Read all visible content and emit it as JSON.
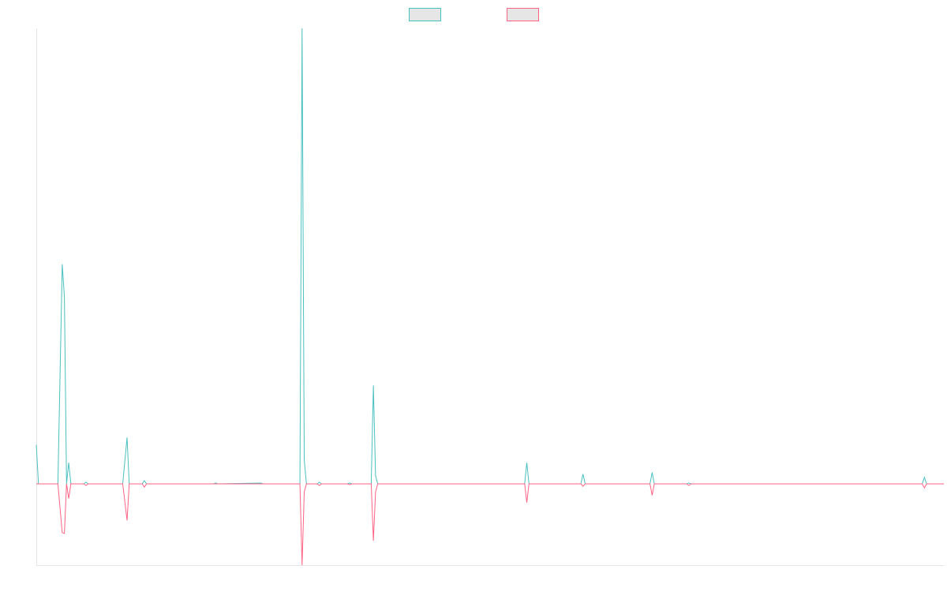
{
  "chart_data": {
    "type": "line",
    "title": "",
    "xlabel": "",
    "ylabel": "",
    "grid": false,
    "legend_position": "top-center",
    "x_range": [
      0,
      210
    ],
    "ylim": [
      -100,
      560
    ],
    "x": [
      0,
      0.5,
      1,
      5,
      6,
      6.5,
      7,
      7.5,
      8,
      8.5,
      9,
      11,
      11.5,
      12,
      19.5,
      20,
      21,
      21.5,
      22,
      24.5,
      25,
      25.5,
      41,
      41.5,
      42,
      52,
      52.5,
      53,
      61,
      61.5,
      62,
      62.5,
      63,
      65,
      65.5,
      66,
      72,
      72.5,
      73,
      77.5,
      78,
      78.5,
      79,
      79.5,
      113,
      113.5,
      114,
      117,
      122,
      126,
      126.5,
      127,
      142,
      142.5,
      143,
      150.5,
      151,
      151.5,
      205,
      205.5,
      206,
      210
    ],
    "series": [
      {
        "name": "",
        "color": "#4bc0c0",
        "values": [
          48,
          0,
          0,
          0,
          270,
          230,
          0,
          26,
          0,
          0,
          0,
          0,
          2,
          0,
          0,
          0,
          57,
          0,
          0,
          0,
          4,
          0,
          0,
          1,
          0,
          1,
          0,
          0,
          0,
          560,
          30,
          0,
          0,
          0,
          2,
          0,
          0,
          1,
          0,
          0,
          121,
          10,
          0,
          0,
          0,
          26,
          0,
          0,
          0,
          0,
          12,
          0,
          0,
          14,
          0,
          0,
          1,
          0,
          0,
          8,
          0,
          0
        ]
      },
      {
        "name": "",
        "color": "#ff6384",
        "values": [
          0,
          0,
          0,
          0,
          -60,
          -61,
          0,
          -18,
          0,
          0,
          0,
          0,
          -2,
          0,
          0,
          0,
          -45,
          0,
          0,
          0,
          -4,
          0,
          0,
          0,
          0,
          0,
          0,
          0,
          0,
          -100,
          -10,
          0,
          0,
          0,
          -2,
          0,
          0,
          -1,
          0,
          0,
          -70,
          -10,
          0,
          0,
          0,
          -23,
          0,
          0,
          0,
          0,
          -3,
          0,
          0,
          -14,
          0,
          0,
          -2,
          0,
          0,
          -5,
          0,
          0
        ]
      }
    ]
  }
}
